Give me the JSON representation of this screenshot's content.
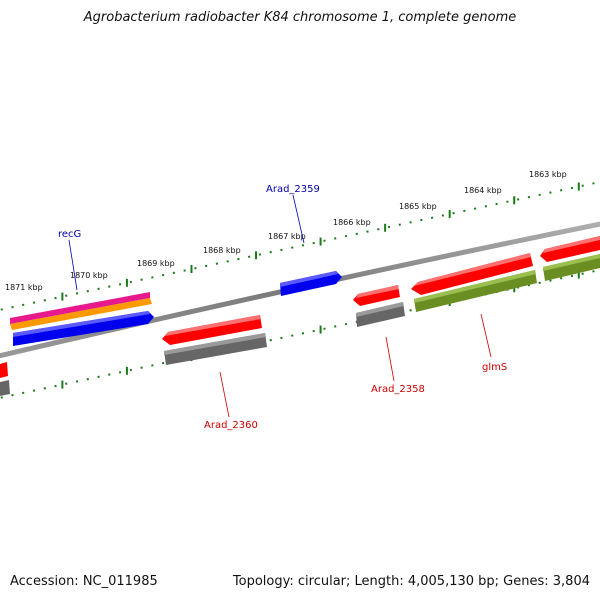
{
  "title": "Agrobacterium radiobacter K84 chromosome 1, complete genome",
  "footer": {
    "accession": "Accession: NC_011985",
    "summary": "Topology: circular; Length: 4,005,130 bp; Genes: 3,804"
  },
  "ruler": [
    {
      "label": "1871 kbp"
    },
    {
      "label": "1870 kbp"
    },
    {
      "label": "1869 kbp"
    },
    {
      "label": "1868 kbp"
    },
    {
      "label": "1867 kbp"
    },
    {
      "label": "1866 kbp"
    },
    {
      "label": "1865 kbp"
    },
    {
      "label": "1864 kbp"
    },
    {
      "label": "1863 kbp"
    }
  ],
  "genes": [
    {
      "name": "recG",
      "color": "#0000aa"
    },
    {
      "name": "Arad_2359",
      "color": "#0000aa"
    },
    {
      "name": "Arad_2360",
      "color": "#cc0000"
    },
    {
      "name": "Arad_2358",
      "color": "#cc0000"
    },
    {
      "name": "glmS",
      "color": "#cc0000"
    }
  ],
  "colors": {
    "backbone": "#808080",
    "ruler": "#1a7a1a",
    "cds_red": "#ff0000",
    "cds_blue": "#0000ee",
    "gene_grey": "#666666",
    "gene_olive": "#6b8e23",
    "magenta": "#e8198c",
    "orange": "#ff9900"
  }
}
